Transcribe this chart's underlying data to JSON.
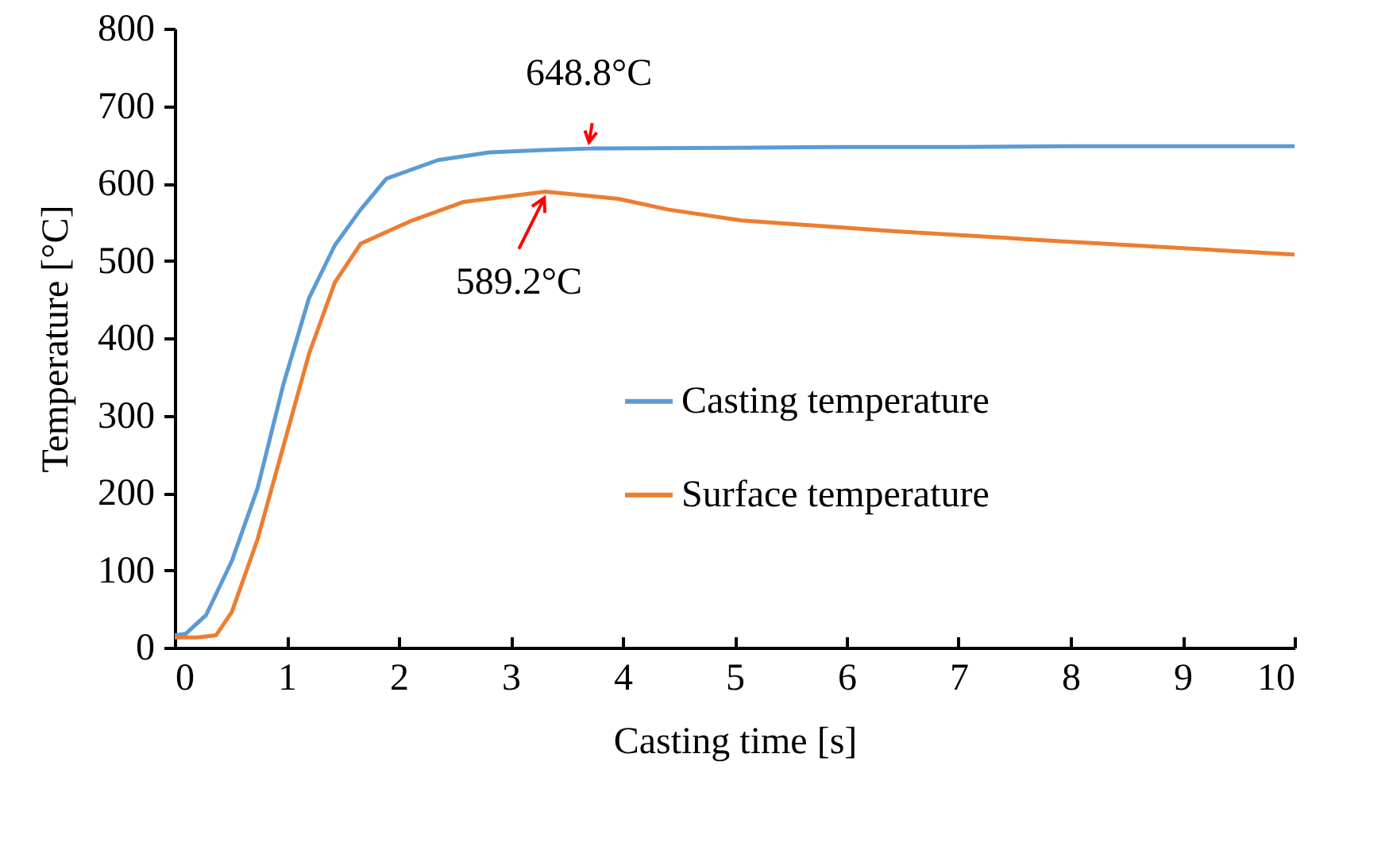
{
  "chart_data": {
    "type": "line",
    "xlabel": "Casting time [s]",
    "ylabel": "Temperature [°C]",
    "xlim": [
      0,
      10
    ],
    "xticks": [
      0,
      1,
      2,
      3,
      4,
      5,
      6,
      7,
      8,
      9,
      10
    ],
    "ylim": [
      0,
      800
    ],
    "yticks": [
      0,
      100,
      200,
      300,
      400,
      500,
      600,
      700,
      800
    ],
    "grid": false,
    "legend": "right",
    "marker": "none",
    "line_style": "solid",
    "series": [
      {
        "name": "Casting temperature",
        "color": "#5b9bd5",
        "x": [
          0,
          0.1,
          0.28,
          0.51,
          0.74,
          0.97,
          1.2,
          1.43,
          1.66,
          1.89,
          2.35,
          2.81,
          3.3,
          3.72,
          5,
          6,
          7,
          8,
          9,
          10
        ],
        "values": [
          16,
          18,
          42,
          112,
          206,
          340,
          452,
          520,
          566,
          606,
          630,
          640,
          643,
          645,
          646,
          647,
          647,
          648,
          648,
          648
        ]
      },
      {
        "name": "Surface temperature",
        "color": "#ed7d31",
        "x": [
          0,
          0.2,
          0.37,
          0.51,
          0.74,
          0.97,
          1.2,
          1.43,
          1.66,
          2.12,
          2.58,
          3.31,
          3.96,
          4.41,
          5.06,
          6.44,
          7.82,
          10
        ],
        "values": [
          13,
          13,
          16,
          46,
          140,
          260,
          380,
          472,
          522,
          552,
          576,
          589.2,
          580,
          566,
          552,
          538,
          526,
          508
        ]
      }
    ],
    "annotations": [
      {
        "text": "648.8°C",
        "x": 3.7,
        "y": 645
      },
      {
        "text": "589.2°C",
        "x": 3.3,
        "y": 589.2
      }
    ]
  }
}
